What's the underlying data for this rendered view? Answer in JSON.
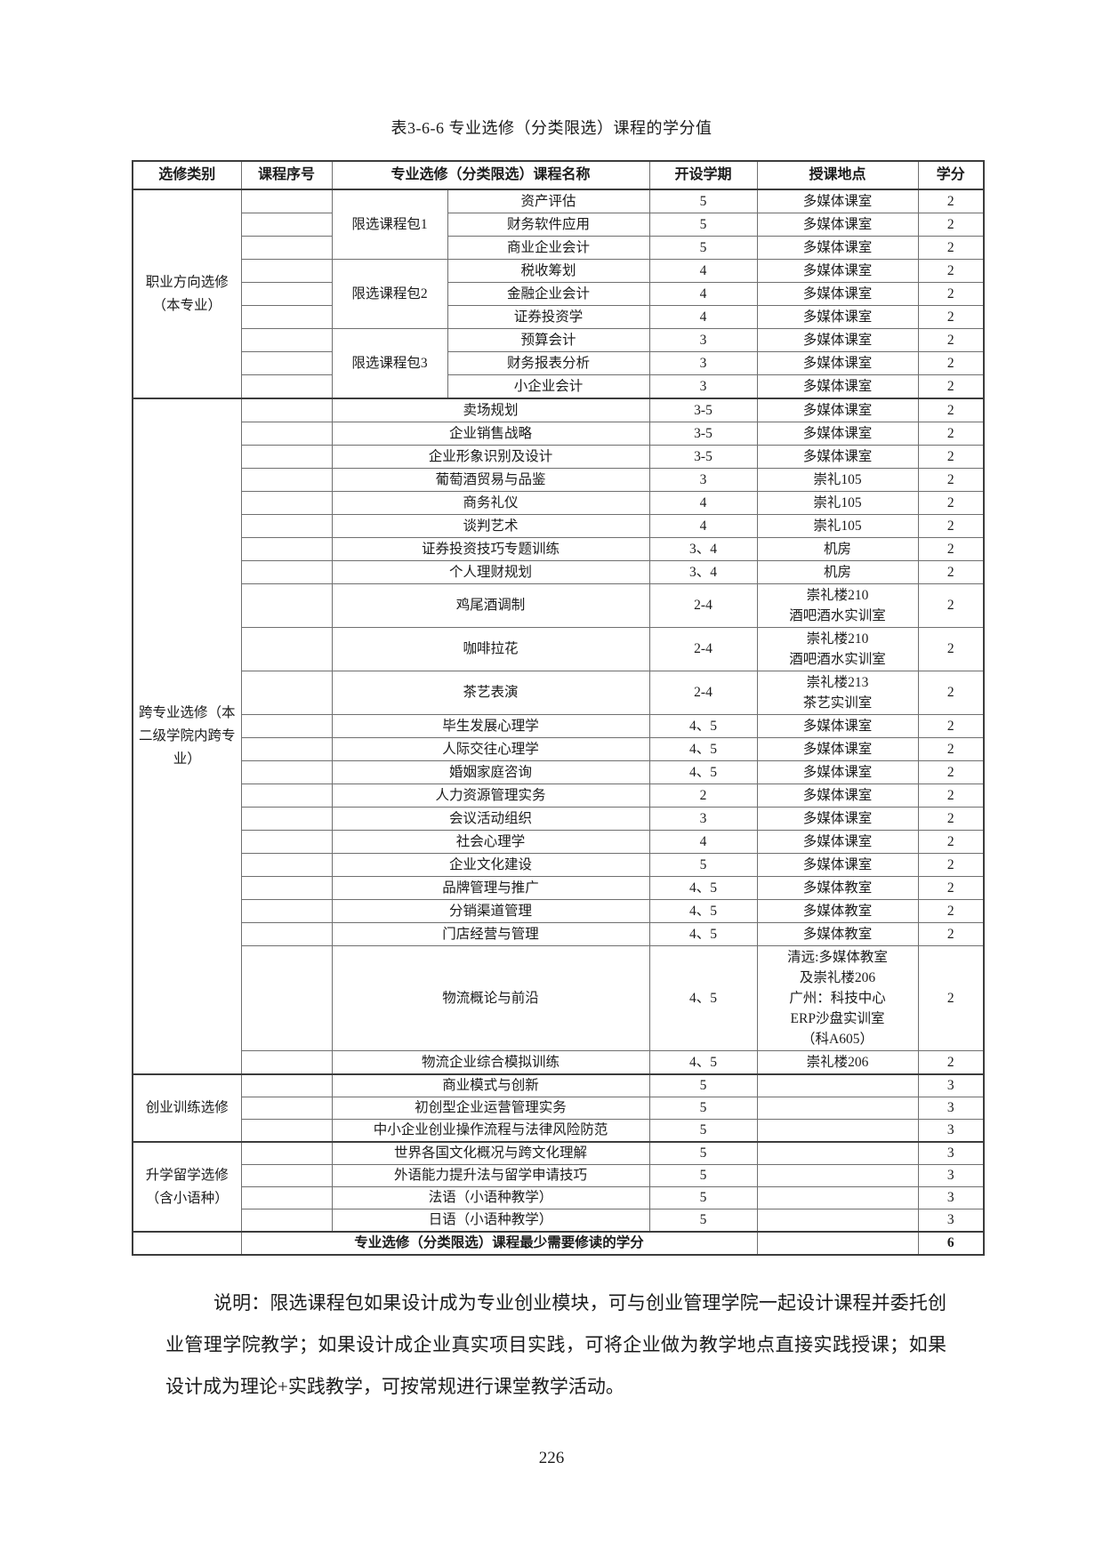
{
  "page": {
    "title": "表3-6-6 专业选修（分类限选）课程的学分值",
    "note": "说明：限选课程包如果设计成为专业创业模块，可与创业管理学院一起设计课程并委托创业管理学院教学；如果设计成企业真实项目实践，可将企业做为教学地点直接实践授课；如果设计成为理论+实践教学，可按常规进行课堂教学活动。",
    "page_number": "226"
  },
  "table": {
    "headers": [
      "选修类别",
      "课程序号",
      "专业选修（分类限选）课程名称",
      "开设学期",
      "授课地点",
      "学分"
    ],
    "sections": [
      {
        "category": "职业方向选修（本专业）",
        "groups": [
          {
            "package": "限选课程包1",
            "courses": [
              {
                "name": "资产评估",
                "term": "5",
                "location": "多媒体课室",
                "credit": "2"
              },
              {
                "name": "财务软件应用",
                "term": "5",
                "location": "多媒体课室",
                "credit": "2"
              },
              {
                "name": "商业企业会计",
                "term": "5",
                "location": "多媒体课室",
                "credit": "2"
              }
            ]
          },
          {
            "package": "限选课程包2",
            "courses": [
              {
                "name": "税收筹划",
                "term": "4",
                "location": "多媒体课室",
                "credit": "2"
              },
              {
                "name": "金融企业会计",
                "term": "4",
                "location": "多媒体课室",
                "credit": "2"
              },
              {
                "name": "证券投资学",
                "term": "4",
                "location": "多媒体课室",
                "credit": "2"
              }
            ]
          },
          {
            "package": "限选课程包3",
            "courses": [
              {
                "name": "预算会计",
                "term": "3",
                "location": "多媒体课室",
                "credit": "2"
              },
              {
                "name": "财务报表分析",
                "term": "3",
                "location": "多媒体课室",
                "credit": "2"
              },
              {
                "name": "小企业会计",
                "term": "3",
                "location": "多媒体课室",
                "credit": "2"
              }
            ]
          }
        ]
      },
      {
        "category": "跨专业选修（本二级学院内跨专业）",
        "courses": [
          {
            "name": "卖场规划",
            "term": "3-5",
            "location": "多媒体课室",
            "credit": "2"
          },
          {
            "name": "企业销售战略",
            "term": "3-5",
            "location": "多媒体课室",
            "credit": "2"
          },
          {
            "name": "企业形象识别及设计",
            "term": "3-5",
            "location": "多媒体课室",
            "credit": "2"
          },
          {
            "name": "葡萄酒贸易与品鉴",
            "term": "3",
            "location": "崇礼105",
            "credit": "2"
          },
          {
            "name": "商务礼仪",
            "term": "4",
            "location": "崇礼105",
            "credit": "2"
          },
          {
            "name": "谈判艺术",
            "term": "4",
            "location": "崇礼105",
            "credit": "2"
          },
          {
            "name": "证券投资技巧专题训练",
            "term": "3、4",
            "location": "机房",
            "credit": "2"
          },
          {
            "name": "个人理财规划",
            "term": "3、4",
            "location": "机房",
            "credit": "2"
          },
          {
            "name": "鸡尾酒调制",
            "term": "2-4",
            "location": "崇礼楼210\n酒吧酒水实训室",
            "credit": "2"
          },
          {
            "name": "咖啡拉花",
            "term": "2-4",
            "location": "崇礼楼210\n酒吧酒水实训室",
            "credit": "2"
          },
          {
            "name": "茶艺表演",
            "term": "2-4",
            "location": "崇礼楼213\n茶艺实训室",
            "credit": "2"
          },
          {
            "name": "毕生发展心理学",
            "term": "4、5",
            "location": "多媒体课室",
            "credit": "2"
          },
          {
            "name": "人际交往心理学",
            "term": "4、5",
            "location": "多媒体课室",
            "credit": "2"
          },
          {
            "name": "婚姻家庭咨询",
            "term": "4、5",
            "location": "多媒体课室",
            "credit": "2"
          },
          {
            "name": "人力资源管理实务",
            "term": "2",
            "location": "多媒体课室",
            "credit": "2"
          },
          {
            "name": "会议活动组织",
            "term": "3",
            "location": "多媒体课室",
            "credit": "2"
          },
          {
            "name": "社会心理学",
            "term": "4",
            "location": "多媒体课室",
            "credit": "2"
          },
          {
            "name": "企业文化建设",
            "term": "5",
            "location": "多媒体课室",
            "credit": "2"
          },
          {
            "name": "品牌管理与推广",
            "term": "4、5",
            "location": "多媒体教室",
            "credit": "2"
          },
          {
            "name": "分销渠道管理",
            "term": "4、5",
            "location": "多媒体教室",
            "credit": "2"
          },
          {
            "name": "门店经营与管理",
            "term": "4、5",
            "location": "多媒体教室",
            "credit": "2"
          },
          {
            "name": "物流概论与前沿",
            "term": "4、5",
            "location": "清远:多媒体教室\n及崇礼楼206\n广州：科技中心\nERP沙盘实训室\n（科A605）",
            "credit": "2"
          },
          {
            "name": "物流企业综合模拟训练",
            "term": "4、5",
            "location": "崇礼楼206",
            "credit": "2"
          }
        ]
      },
      {
        "category": "创业训练选修",
        "courses": [
          {
            "name": "商业模式与创新",
            "term": "5",
            "location": "",
            "credit": "3"
          },
          {
            "name": "初创型企业运营管理实务",
            "term": "5",
            "location": "",
            "credit": "3"
          },
          {
            "name": "中小企业创业操作流程与法律风险防范",
            "term": "5",
            "location": "",
            "credit": "3"
          }
        ]
      },
      {
        "category": "升学留学选修（含小语种）",
        "courses": [
          {
            "name": "世界各国文化概况与跨文化理解",
            "term": "5",
            "location": "",
            "credit": "3"
          },
          {
            "name": "外语能力提升法与留学申请技巧",
            "term": "5",
            "location": "",
            "credit": "3"
          },
          {
            "name": "法语（小语种教学）",
            "term": "5",
            "location": "",
            "credit": "3"
          },
          {
            "name": "日语（小语种教学）",
            "term": "5",
            "location": "",
            "credit": "3"
          }
        ]
      }
    ],
    "footer_row": {
      "label": "专业选修（分类限选）课程最少需要修读的学分",
      "credit": "6"
    }
  }
}
